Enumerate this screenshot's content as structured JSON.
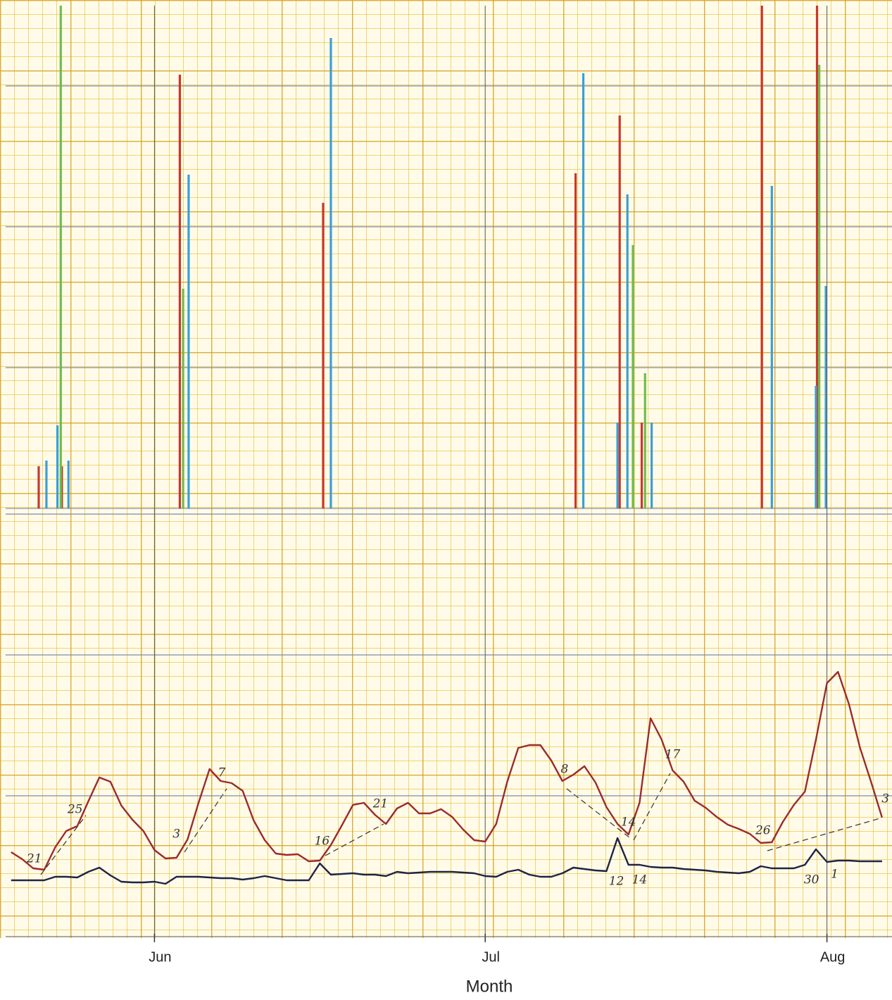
{
  "chart_data": [
    {
      "type": "bar",
      "xlim": [
        -13.5,
        66.9
      ],
      "ylim": [
        0,
        35.7
      ],
      "yticks": [
        10,
        20,
        30
      ],
      "grid": true,
      "series": [
        {
          "name": "red",
          "color": "#c9372e",
          "x": [
            -10.5,
            -8.4,
            2.3,
            15.3,
            38.2,
            42.2,
            44.2,
            55.1,
            60.1
          ],
          "values": [
            3,
            3,
            30.8,
            21.7,
            23.8,
            27.9,
            6.1,
            36,
            36
          ]
        },
        {
          "name": "green",
          "color": "#6cbd4e",
          "x": [
            -8.5,
            2.6,
            43.4,
            44.5,
            60.3
          ],
          "values": [
            36,
            15.6,
            18.7,
            9.6,
            31.5
          ]
        },
        {
          "name": "blue",
          "color": "#3a9fd6",
          "x": [
            -9.8,
            -8.8,
            -7.8,
            3.1,
            16.0,
            38.9,
            42.0,
            42.9,
            45.1,
            56.0,
            60.0,
            60.9
          ],
          "values": [
            3.4,
            5.9,
            3.4,
            23.7,
            33.4,
            30.9,
            6.1,
            22.3,
            6.1,
            22.9,
            8.7,
            15.8
          ]
        }
      ]
    },
    {
      "type": "line",
      "xlabel": "Month",
      "xlim": [
        -13.5,
        66.9
      ],
      "ylim": [
        0,
        30.4
      ],
      "yticks": [
        10,
        20,
        30
      ],
      "grid": true,
      "xticks": [
        {
          "value": 0,
          "label": "Jun"
        },
        {
          "value": 30,
          "label": "Jul"
        },
        {
          "value": 61,
          "label": "Aug"
        }
      ],
      "x": [
        -13,
        -12,
        -11,
        -10,
        -9,
        -8,
        -7,
        -6,
        -5,
        -4,
        -3,
        -2,
        -1,
        0,
        1,
        2,
        3,
        4,
        5,
        6,
        7,
        8,
        9,
        10,
        11,
        12,
        13,
        14,
        15,
        16,
        17,
        18,
        19,
        20,
        21,
        22,
        23,
        24,
        25,
        26,
        27,
        28,
        29,
        30,
        31,
        32,
        33,
        34,
        35,
        36,
        37,
        38,
        39,
        40,
        41,
        42,
        43,
        44,
        45,
        46,
        47,
        48,
        49,
        50,
        51,
        52,
        53,
        54,
        55,
        56,
        57,
        58,
        59,
        60,
        61,
        62,
        63,
        64,
        65,
        66
      ],
      "series": [
        {
          "name": "red",
          "color": "#9c2b2b",
          "values": [
            6.0,
            5.5,
            4.85,
            4.75,
            6.35,
            7.5,
            7.85,
            9.6,
            11.3,
            11.0,
            9.3,
            8.3,
            7.5,
            6.15,
            5.55,
            5.6,
            6.9,
            9.5,
            11.9,
            11.05,
            10.9,
            10.35,
            8.25,
            6.85,
            5.9,
            5.8,
            5.85,
            5.35,
            5.4,
            6.5,
            7.9,
            9.35,
            9.5,
            8.65,
            8.0,
            9.1,
            9.5,
            8.75,
            8.75,
            9.05,
            8.5,
            7.6,
            6.85,
            6.75,
            8.0,
            11.0,
            13.4,
            13.6,
            13.6,
            12.5,
            11.05,
            11.5,
            12.1,
            10.95,
            9.2,
            8.0,
            7.25,
            9.5,
            15.5,
            14.0,
            11.8,
            11.0,
            9.65,
            9.15,
            8.5,
            7.95,
            7.65,
            7.3,
            6.65,
            6.7,
            8.15,
            9.35,
            10.3,
            14.0,
            18.0,
            18.8,
            16.5,
            13.4,
            11.0,
            8.45
          ]
        },
        {
          "name": "black",
          "color": "#1e2446",
          "values": [
            4.0,
            4.0,
            4.0,
            4.0,
            4.25,
            4.25,
            4.2,
            4.6,
            4.9,
            4.35,
            3.9,
            3.85,
            3.85,
            3.9,
            3.75,
            4.25,
            4.25,
            4.25,
            4.2,
            4.15,
            4.15,
            4.05,
            4.15,
            4.3,
            4.15,
            4.0,
            4.0,
            4.0,
            5.2,
            4.4,
            4.45,
            4.5,
            4.4,
            4.4,
            4.3,
            4.6,
            4.5,
            4.55,
            4.6,
            4.6,
            4.6,
            4.55,
            4.5,
            4.3,
            4.25,
            4.6,
            4.75,
            4.4,
            4.25,
            4.25,
            4.5,
            4.9,
            4.8,
            4.7,
            4.65,
            7.0,
            5.1,
            5.1,
            4.95,
            4.9,
            4.9,
            4.8,
            4.75,
            4.7,
            4.6,
            4.55,
            4.5,
            4.6,
            5.0,
            4.85,
            4.85,
            4.85,
            5.1,
            6.2,
            5.3,
            5.4,
            5.4,
            5.35,
            5.35,
            5.35
          ]
        }
      ],
      "annotations": [
        {
          "text": "21",
          "x": -10.9,
          "y": 5.5
        },
        {
          "text": "25",
          "x": -7.2,
          "y": 9.0
        },
        {
          "text": "3",
          "x": 2.0,
          "y": 7.25
        },
        {
          "text": "7",
          "x": 6.1,
          "y": 11.6
        },
        {
          "text": "16",
          "x": 15.2,
          "y": 6.75
        },
        {
          "text": "21",
          "x": 20.5,
          "y": 9.4
        },
        {
          "text": "8",
          "x": 37.2,
          "y": 11.85
        },
        {
          "text": "14",
          "x": 43.0,
          "y": 8.1
        },
        {
          "text": "17",
          "x": 47.0,
          "y": 12.9
        },
        {
          "text": "26",
          "x": 55.2,
          "y": 7.5
        },
        {
          "text": "12",
          "x": 41.9,
          "y": 3.9
        },
        {
          "text": "14",
          "x": 44.0,
          "y": 4.0
        },
        {
          "text": "30",
          "x": 59.6,
          "y": 4.0
        },
        {
          "text": "1",
          "x": 61.7,
          "y": 4.4
        },
        {
          "text": "3",
          "x": 66.3,
          "y": 9.75
        }
      ]
    }
  ]
}
